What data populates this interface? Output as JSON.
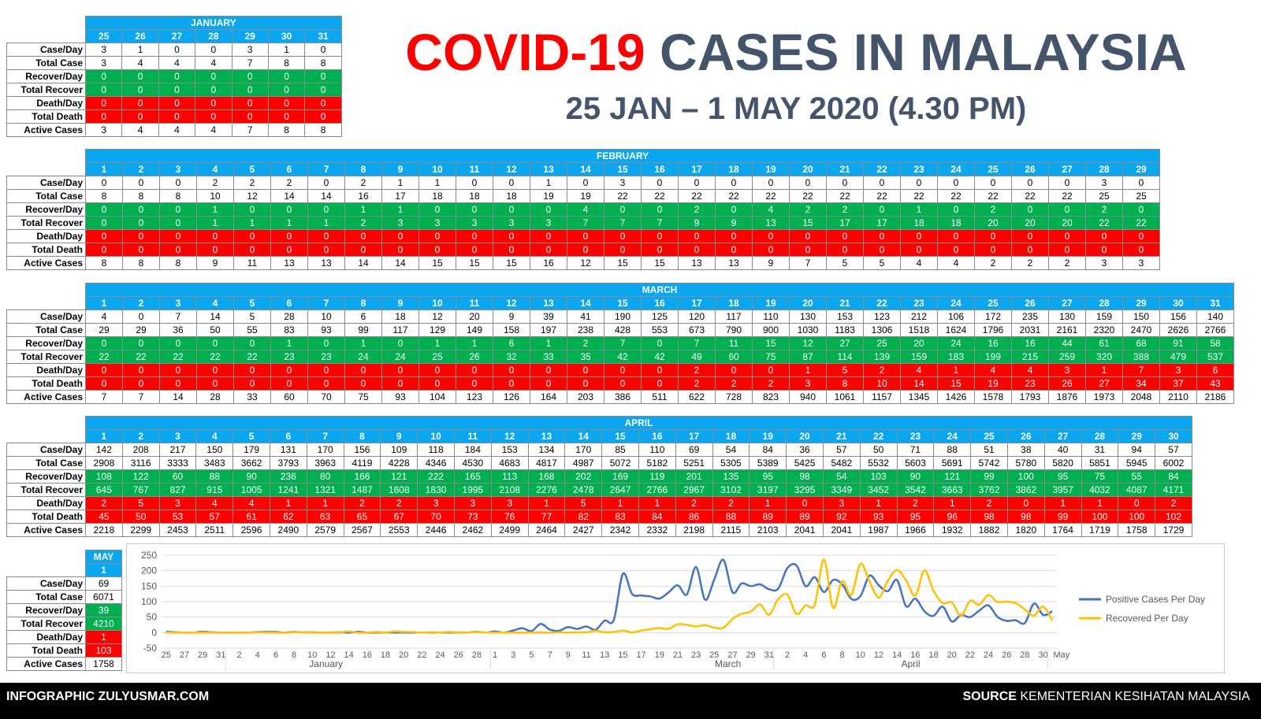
{
  "title": {
    "part1": "COVID-19",
    "part2": "CASES IN MALAYSIA",
    "subtitle": "25 JAN – 1 MAY 2020 (4.30 PM)"
  },
  "row_labels": [
    "Case/Day",
    "Total Case",
    "Recover/Day",
    "Total Recover",
    "Death/Day",
    "Total Death",
    "Active Cases"
  ],
  "months": [
    {
      "name": "JANUARY",
      "days": [
        "25",
        "26",
        "27",
        "28",
        "29",
        "30",
        "31"
      ],
      "rows": [
        [
          "3",
          "1",
          "0",
          "0",
          "3",
          "1",
          "0"
        ],
        [
          "3",
          "4",
          "4",
          "4",
          "7",
          "8",
          "8"
        ],
        [
          "0",
          "0",
          "0",
          "0",
          "0",
          "0",
          "0"
        ],
        [
          "0",
          "0",
          "0",
          "0",
          "0",
          "0",
          "0"
        ],
        [
          "0",
          "0",
          "0",
          "0",
          "0",
          "0",
          "0"
        ],
        [
          "0",
          "0",
          "0",
          "0",
          "0",
          "0",
          "0"
        ],
        [
          "3",
          "4",
          "4",
          "4",
          "7",
          "8",
          "8"
        ]
      ]
    },
    {
      "name": "FEBRUARY",
      "days": [
        "1",
        "2",
        "3",
        "4",
        "5",
        "6",
        "7",
        "8",
        "9",
        "10",
        "11",
        "12",
        "13",
        "14",
        "15",
        "16",
        "17",
        "18",
        "19",
        "20",
        "21",
        "22",
        "23",
        "24",
        "25",
        "26",
        "27",
        "28",
        "29"
      ],
      "rows": [
        [
          "0",
          "0",
          "0",
          "2",
          "2",
          "2",
          "0",
          "2",
          "1",
          "1",
          "0",
          "0",
          "1",
          "0",
          "3",
          "0",
          "0",
          "0",
          "0",
          "0",
          "0",
          "0",
          "0",
          "0",
          "0",
          "0",
          "0",
          "3",
          "0"
        ],
        [
          "8",
          "8",
          "8",
          "10",
          "12",
          "14",
          "14",
          "16",
          "17",
          "18",
          "18",
          "18",
          "19",
          "19",
          "22",
          "22",
          "22",
          "22",
          "22",
          "22",
          "22",
          "22",
          "22",
          "22",
          "22",
          "22",
          "22",
          "25",
          "25"
        ],
        [
          "0",
          "0",
          "0",
          "1",
          "0",
          "0",
          "0",
          "1",
          "1",
          "0",
          "0",
          "0",
          "0",
          "4",
          "0",
          "0",
          "2",
          "0",
          "4",
          "2",
          "2",
          "0",
          "1",
          "0",
          "2",
          "0",
          "0",
          "2",
          "0"
        ],
        [
          "0",
          "0",
          "0",
          "1",
          "1",
          "1",
          "1",
          "2",
          "3",
          "3",
          "3",
          "3",
          "3",
          "7",
          "7",
          "7",
          "9",
          "9",
          "13",
          "15",
          "17",
          "17",
          "18",
          "18",
          "20",
          "20",
          "20",
          "22",
          "22"
        ],
        [
          "0",
          "0",
          "0",
          "0",
          "0",
          "0",
          "0",
          "0",
          "0",
          "0",
          "0",
          "0",
          "0",
          "0",
          "0",
          "0",
          "0",
          "0",
          "0",
          "0",
          "0",
          "0",
          "0",
          "0",
          "0",
          "0",
          "0",
          "0",
          "0"
        ],
        [
          "0",
          "0",
          "0",
          "0",
          "0",
          "0",
          "0",
          "0",
          "0",
          "0",
          "0",
          "0",
          "0",
          "0",
          "0",
          "0",
          "0",
          "0",
          "0",
          "0",
          "0",
          "0",
          "0",
          "0",
          "0",
          "0",
          "0",
          "0",
          "0"
        ],
        [
          "8",
          "8",
          "8",
          "9",
          "11",
          "13",
          "13",
          "14",
          "14",
          "15",
          "15",
          "15",
          "16",
          "12",
          "15",
          "15",
          "13",
          "13",
          "9",
          "7",
          "5",
          "5",
          "4",
          "4",
          "2",
          "2",
          "2",
          "3",
          "3"
        ]
      ]
    },
    {
      "name": "MARCH",
      "days": [
        "1",
        "2",
        "3",
        "4",
        "5",
        "6",
        "7",
        "8",
        "9",
        "10",
        "11",
        "12",
        "13",
        "14",
        "15",
        "16",
        "17",
        "18",
        "19",
        "20",
        "21",
        "22",
        "23",
        "24",
        "25",
        "26",
        "27",
        "28",
        "29",
        "30",
        "31"
      ],
      "rows": [
        [
          "4",
          "0",
          "7",
          "14",
          "5",
          "28",
          "10",
          "6",
          "18",
          "12",
          "20",
          "9",
          "39",
          "41",
          "190",
          "125",
          "120",
          "117",
          "110",
          "130",
          "153",
          "123",
          "212",
          "106",
          "172",
          "235",
          "130",
          "159",
          "150",
          "156",
          "140"
        ],
        [
          "29",
          "29",
          "36",
          "50",
          "55",
          "83",
          "93",
          "99",
          "117",
          "129",
          "149",
          "158",
          "197",
          "238",
          "428",
          "553",
          "673",
          "790",
          "900",
          "1030",
          "1183",
          "1306",
          "1518",
          "1624",
          "1796",
          "2031",
          "2161",
          "2320",
          "2470",
          "2626",
          "2766"
        ],
        [
          "0",
          "0",
          "0",
          "0",
          "0",
          "1",
          "0",
          "1",
          "0",
          "1",
          "1",
          "6",
          "1",
          "2",
          "7",
          "0",
          "7",
          "11",
          "15",
          "12",
          "27",
          "25",
          "20",
          "24",
          "16",
          "16",
          "44",
          "61",
          "68",
          "91",
          "58"
        ],
        [
          "22",
          "22",
          "22",
          "22",
          "22",
          "23",
          "23",
          "24",
          "24",
          "25",
          "26",
          "32",
          "33",
          "35",
          "42",
          "42",
          "49",
          "60",
          "75",
          "87",
          "114",
          "139",
          "159",
          "183",
          "199",
          "215",
          "259",
          "320",
          "388",
          "479",
          "537"
        ],
        [
          "0",
          "0",
          "0",
          "0",
          "0",
          "0",
          "0",
          "0",
          "0",
          "0",
          "0",
          "0",
          "0",
          "0",
          "0",
          "0",
          "2",
          "0",
          "0",
          "1",
          "5",
          "2",
          "4",
          "1",
          "4",
          "4",
          "3",
          "1",
          "7",
          "3",
          "6"
        ],
        [
          "0",
          "0",
          "0",
          "0",
          "0",
          "0",
          "0",
          "0",
          "0",
          "0",
          "0",
          "0",
          "0",
          "0",
          "0",
          "0",
          "2",
          "2",
          "2",
          "3",
          "8",
          "10",
          "14",
          "15",
          "19",
          "23",
          "26",
          "27",
          "34",
          "37",
          "43"
        ],
        [
          "7",
          "7",
          "14",
          "28",
          "33",
          "60",
          "70",
          "75",
          "93",
          "104",
          "123",
          "126",
          "164",
          "203",
          "386",
          "511",
          "622",
          "728",
          "823",
          "940",
          "1061",
          "1157",
          "1345",
          "1426",
          "1578",
          "1793",
          "1876",
          "1973",
          "2048",
          "2110",
          "2186"
        ]
      ]
    },
    {
      "name": "APRIL",
      "days": [
        "1",
        "2",
        "3",
        "4",
        "5",
        "6",
        "7",
        "8",
        "9",
        "10",
        "11",
        "12",
        "13",
        "14",
        "15",
        "16",
        "17",
        "18",
        "19",
        "20",
        "21",
        "22",
        "23",
        "24",
        "25",
        "26",
        "27",
        "28",
        "29",
        "30"
      ],
      "rows": [
        [
          "142",
          "208",
          "217",
          "150",
          "179",
          "131",
          "170",
          "156",
          "109",
          "118",
          "184",
          "153",
          "134",
          "170",
          "85",
          "110",
          "69",
          "54",
          "84",
          "36",
          "57",
          "50",
          "71",
          "88",
          "51",
          "38",
          "40",
          "31",
          "94",
          "57"
        ],
        [
          "2908",
          "3116",
          "3333",
          "3483",
          "3662",
          "3793",
          "3963",
          "4119",
          "4228",
          "4346",
          "4530",
          "4683",
          "4817",
          "4987",
          "5072",
          "5182",
          "5251",
          "5305",
          "5389",
          "5425",
          "5482",
          "5532",
          "5603",
          "5691",
          "5742",
          "5780",
          "5820",
          "5851",
          "5945",
          "6002"
        ],
        [
          "108",
          "122",
          "60",
          "88",
          "90",
          "236",
          "80",
          "166",
          "121",
          "222",
          "165",
          "113",
          "168",
          "202",
          "169",
          "119",
          "201",
          "135",
          "95",
          "98",
          "54",
          "103",
          "90",
          "121",
          "99",
          "100",
          "95",
          "75",
          "55",
          "84"
        ],
        [
          "645",
          "767",
          "827",
          "915",
          "1005",
          "1241",
          "1321",
          "1487",
          "1608",
          "1830",
          "1995",
          "2108",
          "2276",
          "2478",
          "2647",
          "2766",
          "2967",
          "3102",
          "3197",
          "3295",
          "3349",
          "3452",
          "3542",
          "3663",
          "3762",
          "3862",
          "3957",
          "4032",
          "4087",
          "4171"
        ],
        [
          "2",
          "5",
          "3",
          "4",
          "4",
          "1",
          "1",
          "2",
          "2",
          "3",
          "3",
          "3",
          "1",
          "5",
          "1",
          "1",
          "2",
          "2",
          "1",
          "0",
          "3",
          "1",
          "2",
          "1",
          "2",
          "0",
          "1",
          "1",
          "0",
          "2"
        ],
        [
          "45",
          "50",
          "53",
          "57",
          "61",
          "62",
          "63",
          "65",
          "67",
          "70",
          "73",
          "76",
          "77",
          "82",
          "83",
          "84",
          "86",
          "88",
          "89",
          "89",
          "92",
          "93",
          "95",
          "96",
          "98",
          "98",
          "99",
          "100",
          "100",
          "102"
        ],
        [
          "2218",
          "2299",
          "2453",
          "2511",
          "2596",
          "2490",
          "2579",
          "2567",
          "2553",
          "2446",
          "2462",
          "2499",
          "2464",
          "2427",
          "2342",
          "2332",
          "2198",
          "2115",
          "2103",
          "2041",
          "2041",
          "1987",
          "1966",
          "1932",
          "1882",
          "1820",
          "1764",
          "1719",
          "1758",
          "1729"
        ]
      ]
    },
    {
      "name": "MAY",
      "days": [
        "1"
      ],
      "rows": [
        [
          "69"
        ],
        [
          "6071"
        ],
        [
          "39"
        ],
        [
          "4210"
        ],
        [
          "1"
        ],
        [
          "103"
        ],
        [
          "1758"
        ]
      ]
    }
  ],
  "chart_data": {
    "type": "line",
    "title": "",
    "xlabel": "",
    "ylabel": "",
    "ylim": [
      -50,
      250
    ],
    "yticks": [
      "250",
      "200",
      "150",
      "100",
      "50",
      "0",
      "-50"
    ],
    "x_tick_labels": [
      "25",
      "27",
      "29",
      "31",
      "2",
      "4",
      "6",
      "8",
      "10",
      "12",
      "14",
      "16",
      "18",
      "20",
      "22",
      "24",
      "26",
      "28",
      "1",
      "3",
      "5",
      "7",
      "9",
      "11",
      "13",
      "15",
      "17",
      "19",
      "21",
      "23",
      "25",
      "27",
      "29",
      "31",
      "2",
      "4",
      "6",
      "8",
      "10",
      "12",
      "14",
      "16",
      "18",
      "20",
      "22",
      "24",
      "26",
      "28",
      "30",
      "May"
    ],
    "month_group_labels": [
      "January",
      "March",
      "April"
    ],
    "grid": "horizontal",
    "legend": "right",
    "series": [
      {
        "name": "Positive Cases Per Day",
        "color": "#4472c4",
        "values": [
          3,
          1,
          0,
          0,
          3,
          1,
          0,
          0,
          0,
          0,
          2,
          2,
          2,
          0,
          2,
          1,
          1,
          0,
          0,
          1,
          0,
          3,
          0,
          0,
          0,
          0,
          0,
          0,
          0,
          0,
          0,
          0,
          0,
          0,
          3,
          0,
          4,
          0,
          7,
          14,
          5,
          28,
          10,
          6,
          18,
          12,
          20,
          9,
          39,
          41,
          190,
          125,
          120,
          117,
          110,
          130,
          153,
          123,
          212,
          106,
          172,
          235,
          130,
          159,
          150,
          156,
          140,
          142,
          208,
          217,
          150,
          179,
          131,
          170,
          156,
          109,
          118,
          184,
          153,
          134,
          170,
          85,
          110,
          69,
          54,
          84,
          36,
          57,
          50,
          71,
          88,
          51,
          38,
          40,
          31,
          94,
          57,
          69
        ]
      },
      {
        "name": "Recovered Per Day",
        "color": "#ffc000",
        "values": [
          0,
          0,
          0,
          0,
          0,
          0,
          0,
          0,
          0,
          0,
          1,
          0,
          0,
          0,
          1,
          1,
          0,
          0,
          0,
          0,
          4,
          0,
          0,
          2,
          0,
          4,
          2,
          2,
          0,
          1,
          0,
          2,
          0,
          0,
          2,
          0,
          0,
          0,
          0,
          0,
          0,
          1,
          0,
          1,
          0,
          1,
          1,
          6,
          1,
          2,
          7,
          0,
          7,
          11,
          15,
          12,
          27,
          25,
          20,
          24,
          16,
          16,
          44,
          61,
          68,
          91,
          58,
          108,
          122,
          60,
          88,
          90,
          236,
          80,
          166,
          121,
          222,
          165,
          113,
          168,
          202,
          169,
          119,
          201,
          135,
          95,
          98,
          54,
          103,
          90,
          121,
          99,
          100,
          95,
          75,
          55,
          84,
          39
        ]
      }
    ]
  },
  "footer": {
    "left": "INFOGRAPHIC ZULYUSMAR.COM",
    "right_bold": "SOURCE",
    "right": " KEMENTERIAN KESIHATAN MALAYSIA"
  }
}
